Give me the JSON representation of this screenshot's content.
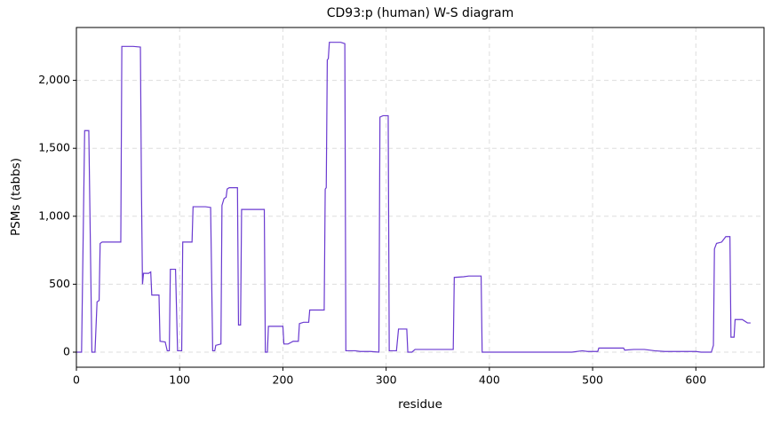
{
  "chart_data": {
    "type": "line",
    "title": "CD93:p (human) W-S diagram",
    "xlabel": "residue",
    "ylabel": "PSMs (tabbs)",
    "color": "#6a3ad0",
    "grid": true,
    "x": [
      0,
      5,
      8,
      12,
      15,
      18,
      20,
      22,
      23,
      25,
      43,
      44,
      55,
      62,
      63,
      64,
      65,
      70,
      72,
      73,
      80,
      81,
      86,
      88,
      90,
      91,
      96,
      98,
      102,
      103,
      112,
      113,
      125,
      130,
      132,
      134,
      135,
      140,
      141,
      143,
      145,
      146,
      148,
      156,
      157,
      159,
      160,
      182,
      183,
      185,
      186,
      200,
      201,
      205,
      210,
      215,
      216,
      220,
      225,
      226,
      233,
      240,
      241,
      242,
      243,
      244,
      245,
      256,
      260,
      261,
      270,
      275,
      285,
      293,
      294,
      297,
      302,
      303,
      310,
      312,
      320,
      321,
      325,
      328,
      340,
      365,
      366,
      375,
      380,
      392,
      393,
      420,
      450,
      480,
      490,
      495,
      505,
      506,
      515,
      530,
      531,
      540,
      550,
      560,
      570,
      600,
      605,
      615,
      617,
      618,
      620,
      625,
      629,
      633,
      634,
      637,
      638,
      645,
      650,
      653
    ],
    "values": [
      0,
      0,
      1630,
      1630,
      0,
      0,
      370,
      380,
      800,
      810,
      810,
      2250,
      2250,
      2245,
      1200,
      500,
      580,
      580,
      590,
      420,
      420,
      80,
      75,
      10,
      10,
      610,
      610,
      10,
      10,
      810,
      810,
      1070,
      1070,
      1065,
      10,
      10,
      50,
      60,
      1080,
      1130,
      1140,
      1200,
      1210,
      1210,
      200,
      200,
      1050,
      1050,
      0,
      0,
      190,
      190,
      60,
      60,
      80,
      80,
      210,
      220,
      220,
      310,
      310,
      310,
      1200,
      1210,
      2150,
      2160,
      2280,
      2280,
      2270,
      10,
      10,
      5,
      5,
      0,
      1730,
      1740,
      1740,
      10,
      10,
      170,
      170,
      0,
      0,
      20,
      20,
      20,
      550,
      555,
      560,
      560,
      0,
      0,
      0,
      0,
      10,
      5,
      5,
      30,
      30,
      30,
      15,
      20,
      20,
      10,
      5,
      5,
      0,
      0,
      50,
      760,
      800,
      810,
      850,
      850,
      110,
      110,
      240,
      240,
      215,
      215
    ],
    "xlim": [
      0,
      666
    ],
    "ylim": [
      -111,
      2389
    ],
    "xticks": [
      0,
      100,
      200,
      300,
      400,
      500,
      600
    ],
    "yticks": [
      0,
      500,
      {
        "value": 1000,
        "label": "1,000"
      },
      {
        "value": 1500,
        "label": "1,500"
      },
      {
        "value": 2000,
        "label": "2,000"
      }
    ]
  }
}
